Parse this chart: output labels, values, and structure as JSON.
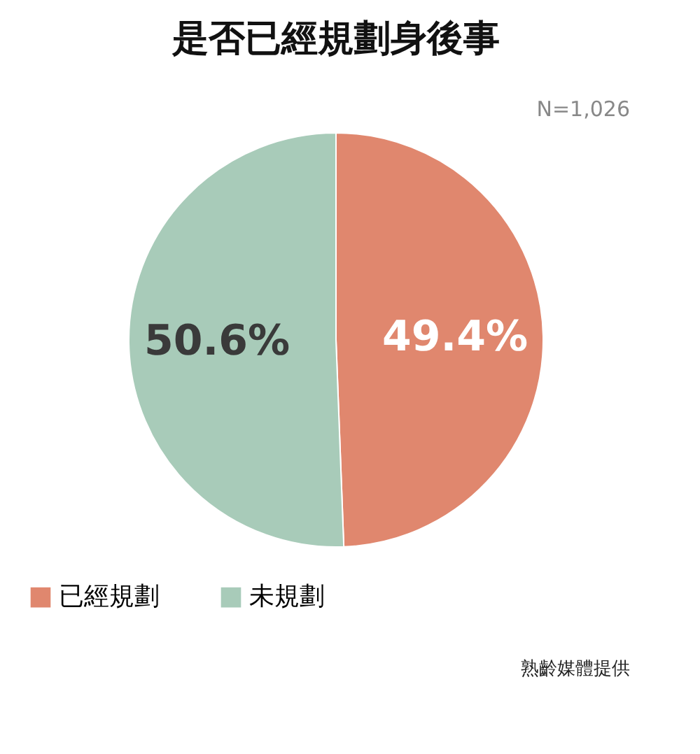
{
  "chart_data": {
    "type": "pie",
    "title": "是否已經規劃身後事",
    "categories": [
      "已經規劃",
      "未規劃"
    ],
    "values": [
      49.4,
      50.6
    ],
    "colors": [
      "#e0876e",
      "#a8cbb9"
    ],
    "value_labels": [
      "49.4%",
      "50.6%"
    ],
    "legend": "bottom",
    "annotations": [
      "N=1,026",
      "熟齡媒體提供"
    ]
  }
}
